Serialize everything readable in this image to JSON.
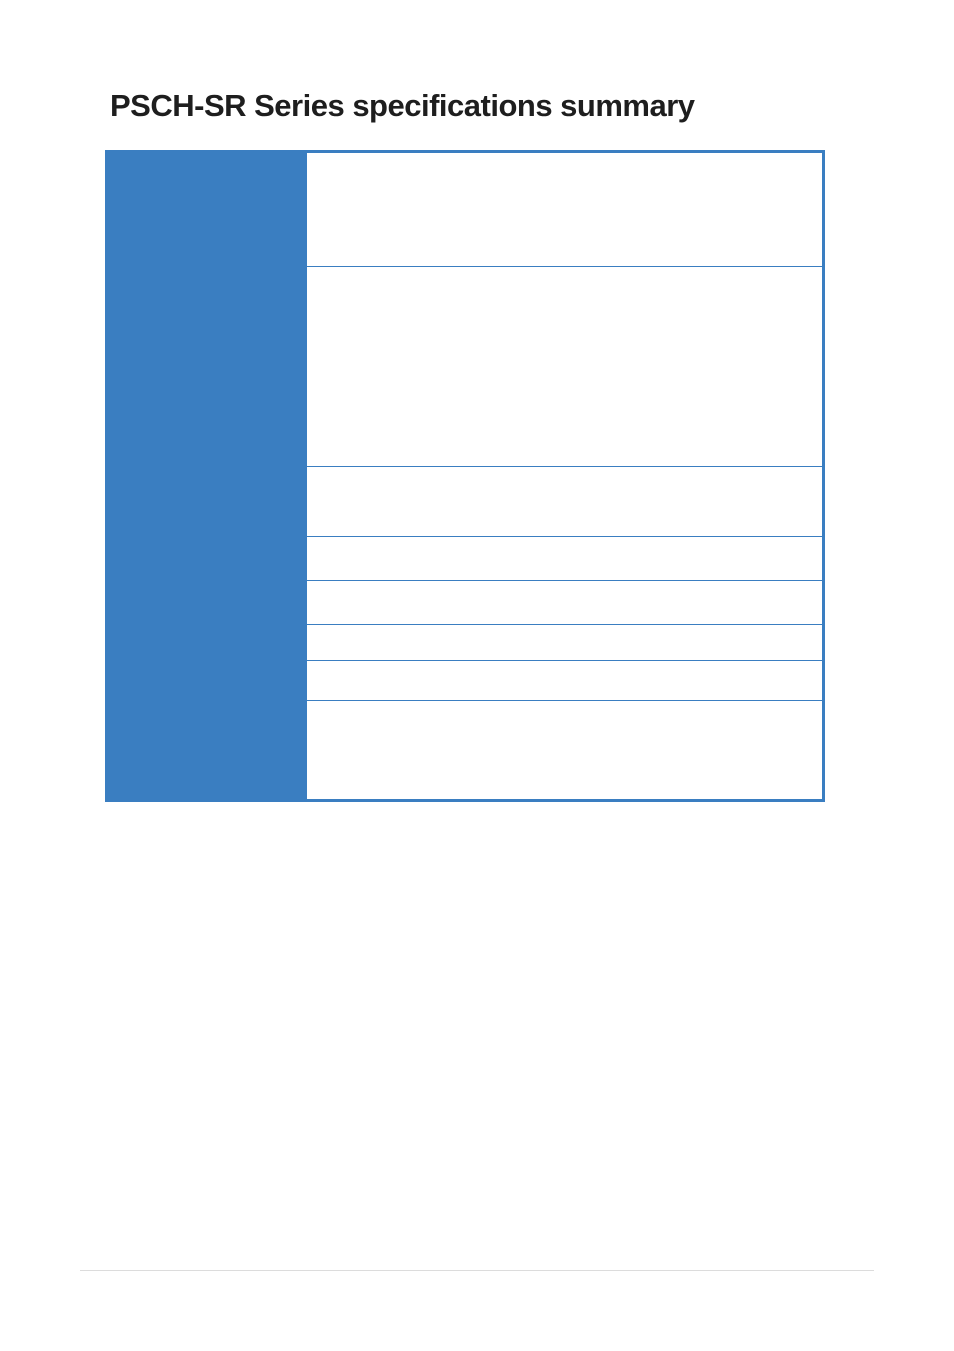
{
  "title": "PSCH-SR Series specifications summary",
  "table_border_color": "#3a7ec1",
  "label_bg_color": "#3a7ec1",
  "value_bg_color": "#ffffff",
  "page_bg_color": "#ffffff",
  "title_color": "#1e1e1e",
  "title_fontsize": 31,
  "rows": [
    {
      "key": "cpu",
      "label": "",
      "value": ""
    },
    {
      "key": "chipset",
      "label": "",
      "value": ""
    },
    {
      "key": "fsb",
      "label": "",
      "value": ""
    },
    {
      "key": "memory",
      "label": "",
      "value": ""
    },
    {
      "key": "vga",
      "label": "",
      "value": ""
    },
    {
      "key": "lan",
      "label": "",
      "value": ""
    },
    {
      "key": "storage",
      "label": "",
      "value": ""
    },
    {
      "key": "expansion",
      "label": "",
      "value": ""
    }
  ]
}
